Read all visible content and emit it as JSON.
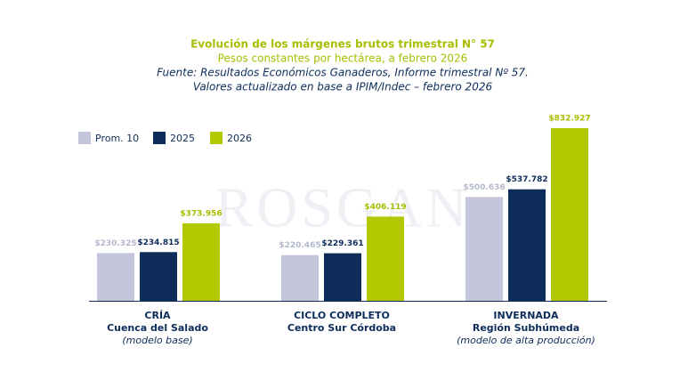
{
  "chart_data": {
    "type": "bar",
    "title": "Evolución de los márgenes brutos trimestral N° 57",
    "subtitle": "Pesos constantes por hectárea, a febrero 2026",
    "source": "Fuente: Resultados Económicos Ganaderos, Informe trimestral Nº 57.",
    "note": "Valores actualizado en base a IPIM/Indec – febrero 2026",
    "watermark": "ROSGAN",
    "categories": [
      "CRÍA",
      "CICLO COMPLETO",
      "INVERNADA"
    ],
    "category_regions": [
      "Cuenca del Salado",
      "Centro Sur Córdoba",
      "Región Subhúmeda"
    ],
    "category_notes": [
      "(modelo base)",
      null,
      "(modelo de alta producción)"
    ],
    "series": [
      {
        "name": "Prom. 10",
        "color": "#c3c6da",
        "label_color": "#b3b8cc",
        "values": [
          230325,
          220465,
          500636
        ],
        "value_labels": [
          "$230.325",
          "$220.465",
          "$500.636"
        ]
      },
      {
        "name": "2025",
        "color": "#0d2c5a",
        "label_color": "#0d2c5a",
        "values": [
          234815,
          229361,
          537782
        ],
        "value_labels": [
          "$234.815",
          "$229.361",
          "$537.782"
        ]
      },
      {
        "name": "2026",
        "color": "#b4c800",
        "label_color": "#a9bd00",
        "values": [
          373956,
          406119,
          832927
        ],
        "value_labels": [
          "$373.956",
          "$406.119",
          "$832.927"
        ]
      }
    ],
    "ylim": [
      0,
      850000
    ],
    "legend": "top-left"
  }
}
